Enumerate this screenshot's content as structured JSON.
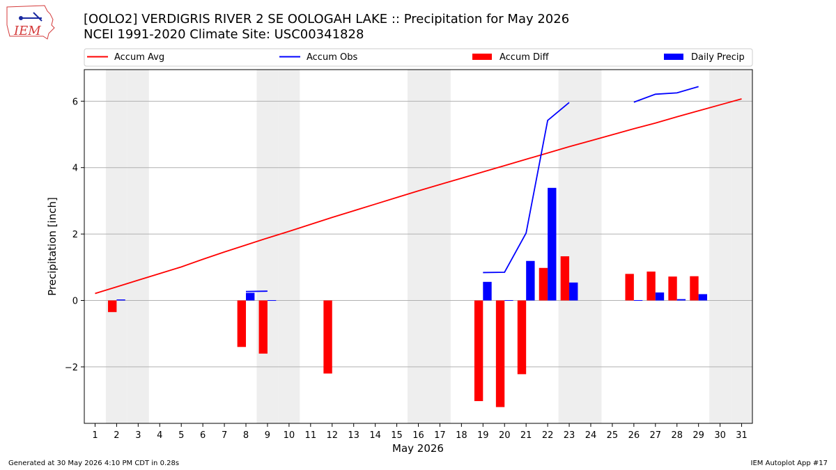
{
  "header": {
    "logo_text": "IEM",
    "title_line1": "[OOLO2] VERDIGRIS RIVER 2 SE OOLOGAH LAKE :: Precipitation for May 2026",
    "title_line2": "NCEI 1991-2020 Climate Site: USC00341828"
  },
  "footer": {
    "left": "Generated at 30 May 2026 4:10 PM CDT in 0.28s",
    "right": "IEM Autoplot App #17"
  },
  "colors": {
    "avg": "#ff0000",
    "obs": "#0000ff",
    "diff": "#ff0000",
    "daily": "#0000ff",
    "weekend": "#eeeeee",
    "grid": "#b0b0b0"
  },
  "chart_data": {
    "type": "bar",
    "xlabel": "May 2026",
    "ylabel": "Precipitation [inch]",
    "xlim": [
      0.5,
      31.5
    ],
    "ylim": [
      -3.7,
      6.95
    ],
    "yticks": [
      -2,
      0,
      2,
      4,
      6
    ],
    "ytick_labels": [
      "−2",
      "0",
      "2",
      "4",
      "6"
    ],
    "grid": "horizontal",
    "legend": {
      "placement": "top, above plot",
      "entries": [
        {
          "label": "Accum Avg",
          "kind": "line",
          "color": "#ff0000"
        },
        {
          "label": "Accum Obs",
          "kind": "line",
          "color": "#0000ff"
        },
        {
          "label": "Accum Diff",
          "kind": "bar",
          "color": "#ff0000"
        },
        {
          "label": "Daily Precip",
          "kind": "bar",
          "color": "#0000ff"
        }
      ]
    },
    "days": [
      1,
      2,
      3,
      4,
      5,
      6,
      7,
      8,
      9,
      10,
      11,
      12,
      13,
      14,
      15,
      16,
      17,
      18,
      19,
      20,
      21,
      22,
      23,
      24,
      25,
      26,
      27,
      28,
      29,
      30,
      31
    ],
    "weekend_days": [
      2,
      3,
      9,
      10,
      16,
      17,
      23,
      24,
      30,
      31
    ],
    "accum_avg": [
      0.21,
      0.41,
      0.61,
      0.81,
      1.01,
      1.24,
      1.46,
      1.67,
      1.88,
      2.08,
      2.29,
      2.5,
      2.7,
      2.9,
      3.1,
      3.3,
      3.49,
      3.68,
      3.87,
      4.06,
      4.25,
      4.44,
      4.63,
      4.81,
      4.99,
      5.17,
      5.34,
      5.53,
      5.71,
      5.89,
      6.07
    ],
    "accum_obs_segments": [
      [
        [
          8,
          0.27
        ],
        [
          9,
          0.28
        ]
      ],
      [
        [
          19,
          0.84
        ],
        [
          20,
          0.85
        ],
        [
          21,
          2.03
        ],
        [
          22,
          5.42
        ],
        [
          23,
          5.96
        ]
      ],
      [
        [
          26,
          5.97
        ],
        [
          27,
          6.21
        ],
        [
          28,
          6.25
        ],
        [
          29,
          6.44
        ]
      ]
    ],
    "accum_diff": [
      {
        "day": 2,
        "value": -0.35
      },
      {
        "day": 8,
        "value": -1.4
      },
      {
        "day": 9,
        "value": -1.6
      },
      {
        "day": 12,
        "value": -2.2
      },
      {
        "day": 19,
        "value": -3.03
      },
      {
        "day": 20,
        "value": -3.21
      },
      {
        "day": 21,
        "value": -2.22
      },
      {
        "day": 22,
        "value": 0.98
      },
      {
        "day": 23,
        "value": 1.33
      },
      {
        "day": 26,
        "value": 0.8
      },
      {
        "day": 27,
        "value": 0.87
      },
      {
        "day": 28,
        "value": 0.72
      },
      {
        "day": 29,
        "value": 0.73
      }
    ],
    "daily_precip": [
      {
        "day": 2,
        "value": 0.03
      },
      {
        "day": 8,
        "value": 0.23
      },
      {
        "day": 9,
        "value": 0.01
      },
      {
        "day": 19,
        "value": 0.56
      },
      {
        "day": 20,
        "value": 0.01
      },
      {
        "day": 21,
        "value": 1.19
      },
      {
        "day": 22,
        "value": 3.39
      },
      {
        "day": 23,
        "value": 0.54
      },
      {
        "day": 26,
        "value": 0.01
      },
      {
        "day": 27,
        "value": 0.24
      },
      {
        "day": 28,
        "value": 0.04
      },
      {
        "day": 29,
        "value": 0.19
      }
    ]
  }
}
